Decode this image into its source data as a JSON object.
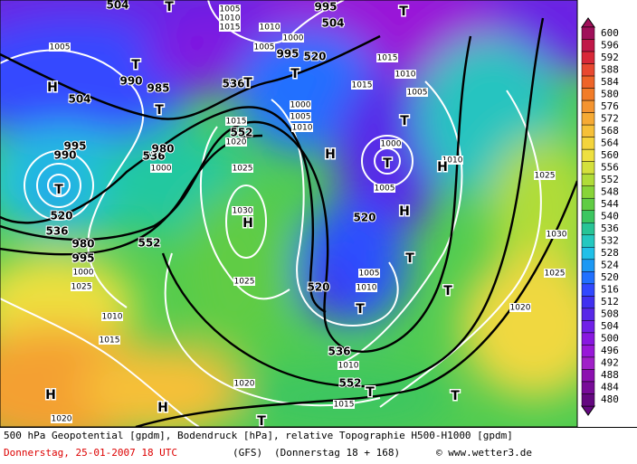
{
  "map": {
    "colorbar": {
      "labels": [
        600,
        596,
        592,
        588,
        584,
        580,
        576,
        572,
        568,
        564,
        560,
        556,
        552,
        548,
        544,
        540,
        536,
        532,
        528,
        524,
        520,
        516,
        512,
        508,
        504,
        500,
        496,
        492,
        488,
        484,
        480
      ],
      "colors": [
        "#a0105a",
        "#c01848",
        "#d82838",
        "#e84830",
        "#ee6428",
        "#f27c28",
        "#f49430",
        "#f6aa34",
        "#f6c038",
        "#f4d43c",
        "#eee040",
        "#d4e03c",
        "#b0dc38",
        "#88d438",
        "#60cc44",
        "#3cc660",
        "#28c496",
        "#24c8c0",
        "#20c0e8",
        "#1c98f4",
        "#2070ff",
        "#3048ff",
        "#4030f0",
        "#5828e8",
        "#7020e8",
        "#8818e0",
        "#9818d8",
        "#a020c8",
        "#8c10b0",
        "#780c98",
        "#640880"
      ]
    },
    "labels": [
      "T",
      "504",
      "1005",
      "1010",
      "1015",
      "995",
      "504",
      "T",
      "1005",
      "H",
      "504",
      "T",
      "990",
      "985",
      "T",
      "536",
      "T",
      "1010",
      "1005",
      "1000",
      "995",
      "520",
      "T",
      "1015",
      "1015",
      "1010",
      "1005",
      "T",
      "1000",
      "T",
      "1005",
      "1010",
      "H",
      "1000",
      "1005",
      "1010",
      "1015",
      "1020",
      "552",
      "995",
      "990",
      "536",
      "980",
      "1000",
      "T",
      "520",
      "536",
      "980",
      "995",
      "1000",
      "1025",
      "552",
      "1025",
      "1030",
      "H",
      "H",
      "520",
      "H",
      "1025",
      "1030",
      "1025",
      "T",
      "1005",
      "1010",
      "520",
      "T",
      "T",
      "1020",
      "1025",
      "1010",
      "1015",
      "536",
      "1010",
      "552",
      "1020",
      "1015",
      "H",
      "H",
      "T",
      "T",
      "1020",
      "T"
    ],
    "footer": {
      "line1": "500 hPa Geopotential [gpdm], Bodendruck [hPa], relative Topographie H500-H1000 [gpdm]",
      "date": "Donnerstag, 25-01-2007  18 UTC",
      "model": "(GFS)",
      "run": "(Donnerstag 18 + 168)",
      "credit": "© www.wetter3.de"
    }
  }
}
